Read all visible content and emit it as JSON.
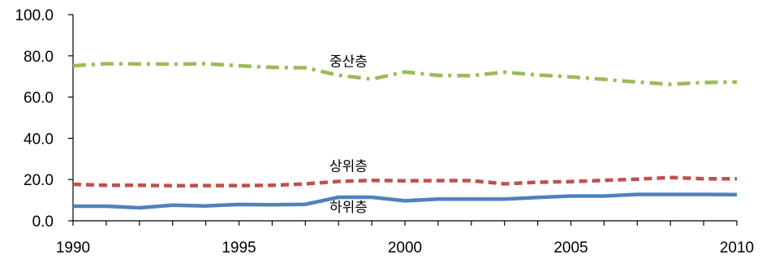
{
  "chart_data": {
    "type": "line",
    "title": "",
    "xlabel": "",
    "ylabel": "",
    "xlim": [
      1990,
      2010
    ],
    "ylim": [
      0,
      100
    ],
    "grid": false,
    "legend": "none",
    "x_ticks": [
      1990,
      1995,
      2000,
      2005,
      2010
    ],
    "y_ticks": [
      0,
      20,
      40,
      60,
      80,
      100
    ],
    "y_tick_labels": [
      "0.0",
      "20.0",
      "40.0",
      "60.0",
      "80.0",
      "100.0"
    ],
    "x": [
      1990,
      1991,
      1992,
      1993,
      1994,
      1995,
      1996,
      1997,
      1998,
      1999,
      2000,
      2001,
      2002,
      2003,
      2004,
      2005,
      2006,
      2007,
      2008,
      2009,
      2010
    ],
    "series": [
      {
        "name": "중산층",
        "color": "#9bbb59",
        "dash": "dash-dot",
        "values": [
          75.2,
          76.2,
          76.1,
          76.0,
          76.2,
          75.2,
          74.4,
          74.2,
          70.6,
          68.7,
          72.2,
          70.5,
          70.4,
          72.1,
          70.7,
          69.8,
          68.6,
          67.3,
          66.2,
          67.1,
          67.3
        ]
      },
      {
        "name": "상위층",
        "color": "#c0504d",
        "dash": "dash",
        "values": [
          17.7,
          17.2,
          17.2,
          17.0,
          17.1,
          17.1,
          17.2,
          17.9,
          19.1,
          19.6,
          19.4,
          19.5,
          19.5,
          17.9,
          18.7,
          19.0,
          19.6,
          20.2,
          21.0,
          20.4,
          20.4
        ]
      },
      {
        "name": "하위층",
        "color": "#4f81bd",
        "dash": "solid",
        "values": [
          7.1,
          7.1,
          6.3,
          7.6,
          7.2,
          7.9,
          7.8,
          8.0,
          11.4,
          11.4,
          9.7,
          10.5,
          10.5,
          10.5,
          11.3,
          12.0,
          12.0,
          12.8,
          12.8,
          12.8,
          12.7
        ]
      }
    ]
  }
}
